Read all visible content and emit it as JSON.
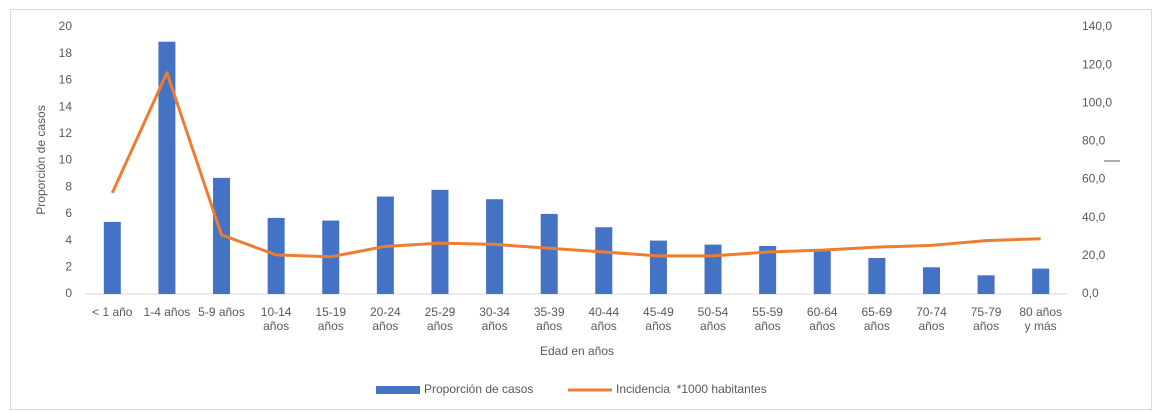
{
  "chart_data": {
    "type": "bar-line",
    "categories": [
      "< 1 año",
      "1-4 años",
      "5-9 años",
      "10-14 años",
      "15-19 años",
      "20-24 años",
      "25-29 años",
      "30-34 años",
      "35-39 años",
      "40-44 años",
      "45-49 años",
      "50-54 años",
      "55-59 años",
      "60-64 años",
      "65-69 años",
      "70-74 años",
      "75-79 años",
      "80 años y más"
    ],
    "x_label": "Edad en años",
    "y_label": "Proporción de casos",
    "series": [
      {
        "name": "Proporción de casos",
        "type": "bar",
        "color": "#4472c4",
        "values": [
          5.4,
          18.9,
          8.7,
          5.7,
          5.5,
          7.3,
          7.8,
          7.1,
          6.0,
          5.0,
          4.0,
          3.7,
          3.6,
          3.3,
          2.7,
          2.0,
          1.4,
          1.9
        ]
      },
      {
        "name": "Incidencia  *1000 habitantes",
        "type": "line",
        "axis": "y2",
        "color": "#ed7d31",
        "values": [
          53,
          116,
          31,
          20.5,
          19.5,
          25,
          26.7,
          26,
          24,
          22,
          20,
          20,
          22,
          23,
          24.6,
          25.5,
          28,
          29
        ]
      }
    ],
    "ylim": [
      0,
      20
    ],
    "yticks": [
      0,
      2,
      4,
      6,
      8,
      10,
      12,
      14,
      16,
      18,
      20
    ],
    "y2lim": [
      0,
      140
    ],
    "y2ticks": [
      {
        "value": 0,
        "label": "0,0"
      },
      {
        "value": 20,
        "label": "20,0"
      },
      {
        "value": 40,
        "label": "40,0"
      },
      {
        "value": 60,
        "label": "60,0"
      },
      {
        "value": 80,
        "label": "80,0"
      },
      {
        "value": 100,
        "label": "100,0"
      },
      {
        "value": 120,
        "label": "120,0"
      },
      {
        "value": 140,
        "label": "140,0"
      }
    ],
    "grid": false,
    "legend": "bottom"
  }
}
